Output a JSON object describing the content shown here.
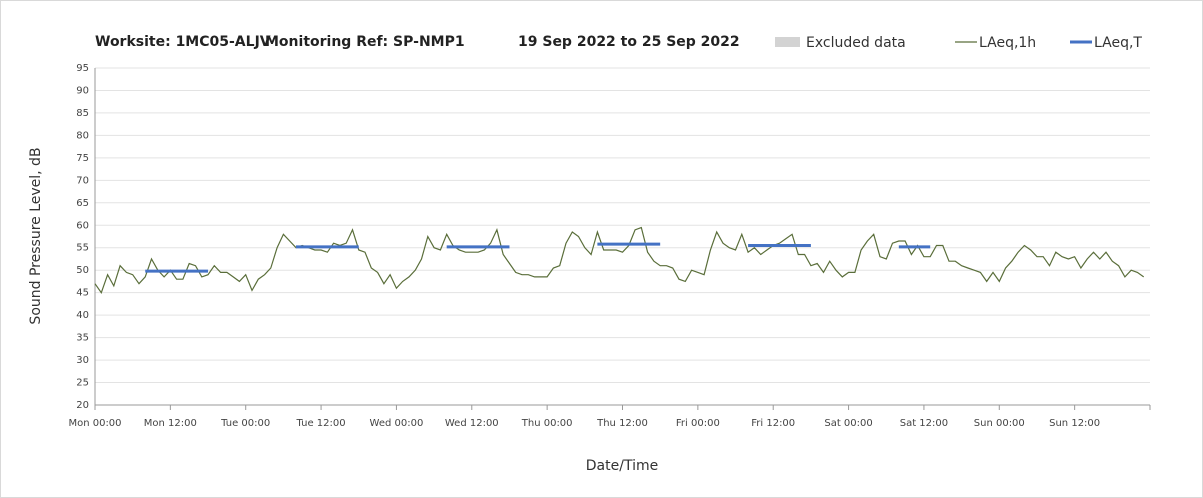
{
  "chart_data": {
    "type": "line",
    "title_parts": [
      "Worksite: 1MC05-ALJV",
      "Monitoring Ref: SP-NMP1",
      "19 Sep 2022 to 25 Sep 2022"
    ],
    "y_label": "Sound Pressure Level, dB",
    "x_label": "Date/Time",
    "xlim": [
      0,
      168
    ],
    "ylim": [
      20,
      95
    ],
    "yticks": [
      20,
      25,
      30,
      35,
      40,
      45,
      50,
      55,
      60,
      65,
      70,
      75,
      80,
      85,
      90,
      95
    ],
    "xticks": [
      {
        "value": 0,
        "label": "Mon 00:00"
      },
      {
        "value": 12,
        "label": "Mon 12:00"
      },
      {
        "value": 24,
        "label": "Tue 00:00"
      },
      {
        "value": 36,
        "label": "Tue 12:00"
      },
      {
        "value": 48,
        "label": "Wed 00:00"
      },
      {
        "value": 60,
        "label": "Wed 12:00"
      },
      {
        "value": 72,
        "label": "Thu 00:00"
      },
      {
        "value": 84,
        "label": "Thu 12:00"
      },
      {
        "value": 96,
        "label": "Fri 00:00"
      },
      {
        "value": 108,
        "label": "Fri 12:00"
      },
      {
        "value": 120,
        "label": "Sat 00:00"
      },
      {
        "value": 132,
        "label": "Sat 12:00"
      },
      {
        "value": 144,
        "label": "Sun 00:00"
      },
      {
        "value": 156,
        "label": "Sun 12:00"
      }
    ],
    "grid": true,
    "series": [
      {
        "name": "Excluded data",
        "color": "#d3d3d3",
        "values": []
      },
      {
        "name": "LAeq,1h",
        "color": "#5a6e3a",
        "x": [
          0,
          1,
          2,
          3,
          4,
          5,
          6,
          7,
          8,
          9,
          10,
          11,
          12,
          13,
          14,
          15,
          16,
          17,
          18,
          19,
          20,
          21,
          22,
          23,
          24,
          25,
          26,
          27,
          28,
          29,
          30,
          31,
          32,
          33,
          34,
          35,
          36,
          37,
          38,
          39,
          40,
          41,
          42,
          43,
          44,
          45,
          46,
          47,
          48,
          49,
          50,
          51,
          52,
          53,
          54,
          55,
          56,
          57,
          58,
          59,
          60,
          61,
          62,
          63,
          64,
          65,
          66,
          67,
          68,
          69,
          70,
          71,
          72,
          73,
          74,
          75,
          76,
          77,
          78,
          79,
          80,
          81,
          82,
          83,
          84,
          85,
          86,
          87,
          88,
          89,
          90,
          91,
          92,
          93,
          94,
          95,
          96,
          97,
          98,
          99,
          100,
          101,
          102,
          103,
          104,
          105,
          106,
          107,
          108,
          109,
          110,
          111,
          112,
          113,
          114,
          115,
          116,
          117,
          118,
          119,
          120,
          121,
          122,
          123,
          124,
          125,
          126,
          127,
          128,
          129,
          130,
          131,
          132,
          133,
          134,
          135,
          136,
          137,
          138,
          139,
          140,
          141,
          142,
          143,
          144,
          145,
          146,
          147,
          148,
          149,
          150,
          151,
          152,
          153,
          154,
          155,
          156,
          157,
          158,
          159,
          160,
          161,
          162,
          163,
          164,
          165,
          166,
          167
        ],
        "values": [
          47,
          45,
          49,
          46.5,
          51,
          49.5,
          49,
          47,
          48.5,
          52.5,
          50,
          48.5,
          50,
          48,
          48,
          51.5,
          51,
          48.5,
          49,
          51,
          49.5,
          49.5,
          48.5,
          47.5,
          49,
          45.5,
          48,
          49,
          50.5,
          55,
          58,
          56.5,
          55,
          55.5,
          55,
          54.5,
          54.5,
          54,
          56,
          55.5,
          56,
          59,
          54.5,
          54,
          50.5,
          49.5,
          47,
          49,
          46,
          47.5,
          48.5,
          50,
          52.5,
          57.5,
          55,
          54.5,
          58,
          55.5,
          54.5,
          54,
          54,
          54,
          54.5,
          56,
          59,
          53.5,
          51.5,
          49.5,
          49,
          49,
          48.5,
          48.5,
          48.5,
          50.5,
          51,
          56,
          58.5,
          57.5,
          55,
          53.5,
          58.5,
          54.5,
          54.5,
          54.5,
          54,
          55.5,
          59,
          59.5,
          54,
          52,
          51,
          51,
          50.5,
          48,
          47.5,
          50,
          49.5,
          49,
          54.5,
          58.5,
          56,
          55,
          54.5,
          58,
          54,
          55,
          53.5,
          54.5,
          55.5,
          56,
          57,
          58,
          53.5,
          53.5,
          51,
          51.5,
          49.5,
          52,
          50,
          48.5,
          49.5,
          49.5,
          54.5,
          56.5,
          58,
          53,
          52.5,
          56,
          56.5,
          56.5,
          53.5,
          55.5,
          53,
          53,
          55.5,
          55.5,
          52,
          52,
          51,
          50.5,
          50,
          49.5,
          47.5,
          49.5,
          47.5,
          50.5,
          52,
          54,
          55.5,
          54.5,
          53,
          53,
          51,
          54,
          53,
          52.5,
          53,
          50.5,
          52.5,
          54,
          52.5,
          54,
          52,
          51,
          48.5,
          50,
          49.5,
          48.5
        ]
      },
      {
        "name": "LAeq,T",
        "color": "#4472c4",
        "x_start": [
          8,
          32,
          56,
          80,
          104,
          128
        ],
        "x_end": [
          18,
          42,
          66,
          90,
          114,
          133
        ],
        "values": [
          49.8,
          55.2,
          55.2,
          55.8,
          55.5,
          55.2
        ]
      }
    ]
  }
}
